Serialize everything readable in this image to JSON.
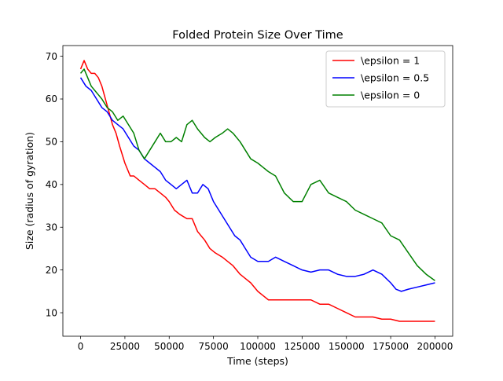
{
  "chart_data": {
    "type": "line",
    "title": "Folded Protein Size Over Time",
    "xlabel": "Time (steps)",
    "ylabel": "Size (radius of gyration)",
    "xlim": [
      -10000,
      210000
    ],
    "ylim": [
      4.5,
      72.5
    ],
    "xticks": [
      0,
      25000,
      50000,
      75000,
      100000,
      125000,
      150000,
      175000,
      200000
    ],
    "yticks": [
      10,
      20,
      30,
      40,
      50,
      60,
      70
    ],
    "grid": false,
    "legend_position": "top-right",
    "series": [
      {
        "name": "\\epsilon = 1",
        "color": "#ff0000",
        "x": [
          0,
          2000,
          4000,
          6000,
          8000,
          10000,
          12000,
          14000,
          16000,
          18000,
          20000,
          22000,
          25000,
          28000,
          30000,
          33000,
          36000,
          39000,
          42000,
          45000,
          48000,
          50000,
          53000,
          56000,
          60000,
          63000,
          66000,
          70000,
          73000,
          76000,
          80000,
          83000,
          86000,
          90000,
          93000,
          96000,
          100000,
          103000,
          106000,
          110000,
          115000,
          120000,
          125000,
          130000,
          135000,
          140000,
          145000,
          150000,
          155000,
          160000,
          165000,
          170000,
          175000,
          180000,
          185000,
          190000,
          195000,
          200000
        ],
        "values": [
          67,
          69,
          67,
          66,
          66,
          65,
          63,
          60,
          57,
          54,
          52,
          49,
          45,
          42,
          42,
          41,
          40,
          39,
          39,
          38,
          37,
          36,
          34,
          33,
          32,
          32,
          29,
          27,
          25,
          24,
          23,
          22,
          21,
          19,
          18,
          17,
          15,
          14,
          13,
          13,
          13,
          13,
          13,
          13,
          12,
          12,
          11,
          10,
          9,
          9,
          9,
          8.5,
          8.5,
          8,
          8,
          8,
          8,
          8
        ]
      },
      {
        "name": "\\epsilon = 0.5",
        "color": "#0000ff",
        "x": [
          0,
          3000,
          6000,
          9000,
          12000,
          15000,
          18000,
          21000,
          24000,
          27000,
          30000,
          33000,
          36000,
          39000,
          42000,
          45000,
          48000,
          51000,
          54000,
          57000,
          60000,
          63000,
          66000,
          69000,
          72000,
          75000,
          78000,
          81000,
          84000,
          87000,
          90000,
          93000,
          96000,
          100000,
          103000,
          106000,
          110000,
          115000,
          120000,
          125000,
          130000,
          135000,
          140000,
          145000,
          150000,
          155000,
          160000,
          165000,
          170000,
          175000,
          178000,
          181000,
          185000,
          190000,
          195000,
          200000
        ],
        "values": [
          65,
          63,
          62,
          60,
          58,
          57,
          55,
          54,
          53,
          51,
          49,
          48,
          46,
          45,
          44,
          43,
          41,
          40,
          39,
          40,
          41,
          38,
          38,
          40,
          39,
          36,
          34,
          32,
          30,
          28,
          27,
          25,
          23,
          22,
          22,
          22,
          23,
          22,
          21,
          20,
          19.5,
          20,
          20,
          19,
          18.5,
          18.5,
          19,
          20,
          19,
          17,
          15.5,
          15,
          15.5,
          16,
          16.5,
          17
        ]
      },
      {
        "name": "\\epsilon = 0",
        "color": "#008000",
        "x": [
          0,
          2000,
          4000,
          6000,
          8000,
          10000,
          12000,
          15000,
          18000,
          21000,
          24000,
          27000,
          30000,
          33000,
          36000,
          39000,
          42000,
          45000,
          48000,
          51000,
          54000,
          57000,
          60000,
          63000,
          66000,
          70000,
          73000,
          76000,
          80000,
          83000,
          86000,
          90000,
          93000,
          96000,
          100000,
          103000,
          106000,
          110000,
          115000,
          120000,
          125000,
          130000,
          135000,
          140000,
          145000,
          150000,
          155000,
          160000,
          165000,
          170000,
          175000,
          180000,
          185000,
          190000,
          195000,
          200000
        ],
        "values": [
          66,
          67,
          65,
          63,
          62,
          61,
          60,
          58,
          57,
          55,
          56,
          54,
          52,
          48,
          46,
          48,
          50,
          52,
          50,
          50,
          51,
          50,
          54,
          55,
          53,
          51,
          50,
          51,
          52,
          53,
          52,
          50,
          48,
          46,
          45,
          44,
          43,
          42,
          38,
          36,
          36,
          40,
          41,
          38,
          37,
          36,
          34,
          33,
          32,
          31,
          28,
          27,
          24,
          21,
          19,
          17.5
        ]
      }
    ]
  }
}
